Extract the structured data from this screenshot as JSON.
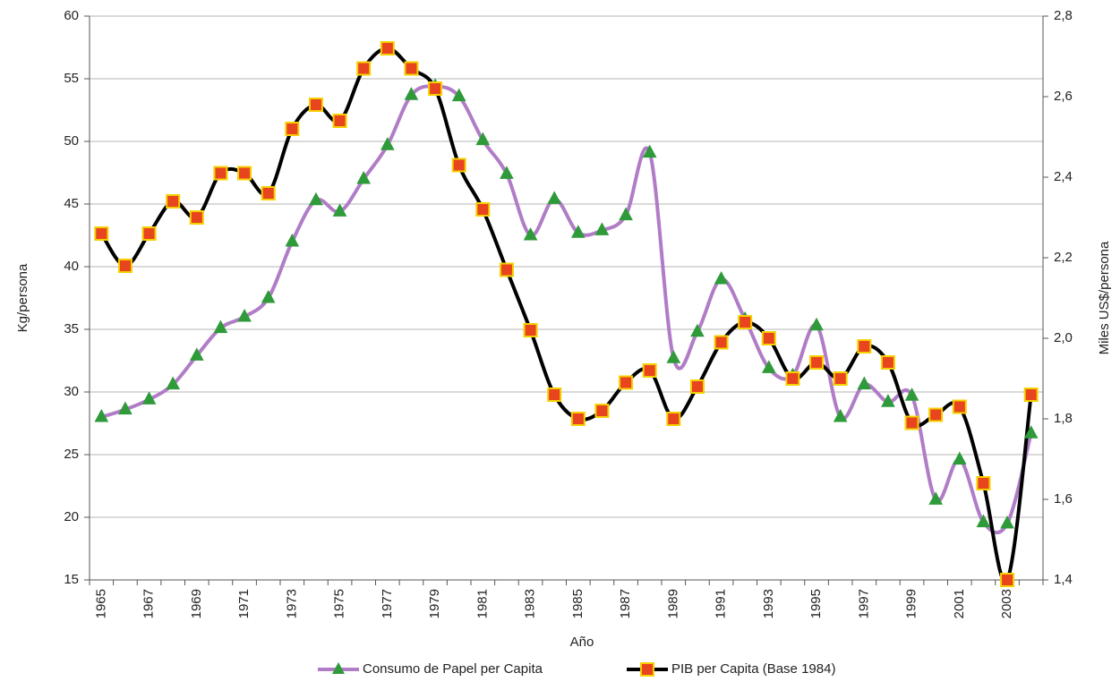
{
  "chart_data": {
    "type": "line",
    "categories": [
      "1965",
      null,
      "1967",
      null,
      "1969",
      null,
      "1971",
      null,
      "1973",
      null,
      "1975",
      null,
      "1977",
      null,
      "1979",
      null,
      "1981",
      null,
      "1983",
      null,
      "1985",
      null,
      "1987",
      null,
      "1989",
      null,
      "1991",
      null,
      "1993",
      null,
      "1995",
      null,
      "1997",
      null,
      "1999",
      null,
      "2001",
      null,
      "2003",
      null
    ],
    "x_label": "Año",
    "y_label": "Kg/persona",
    "y2_label": "Miles US$/persona",
    "ylim": [
      15,
      60
    ],
    "yticks": [
      15,
      20,
      25,
      30,
      35,
      40,
      45,
      50,
      55,
      60
    ],
    "y2lim": [
      1.4,
      2.8
    ],
    "y2ticks": [
      {
        "value": 1.4,
        "label": "1,4"
      },
      {
        "value": 1.6,
        "label": "1,6"
      },
      {
        "value": 1.8,
        "label": "1,8"
      },
      {
        "value": 2.0,
        "label": "2,0"
      },
      {
        "value": 2.2,
        "label": "2,2"
      },
      {
        "value": 2.4,
        "label": "2,4"
      },
      {
        "value": 2.6,
        "label": "2,6"
      },
      {
        "value": 2.8,
        "label": "2,8"
      }
    ],
    "grid": true,
    "series": [
      {
        "name": "Consumo de Papel per Capita",
        "color": "#b07cc6",
        "marker": "triangle",
        "marker_color": "#2e9a3a",
        "marker_edge": "#2e9a3a",
        "values": [
          28.0,
          28.6,
          29.4,
          30.6,
          32.9,
          35.1,
          36.0,
          37.5,
          42.0,
          45.3,
          44.4,
          47.0,
          49.7,
          53.7,
          54.4,
          53.6,
          50.1,
          47.4,
          42.5,
          45.4,
          42.7,
          42.9,
          44.1,
          49.1,
          32.7,
          34.8,
          39.0,
          35.8,
          31.9,
          31.3,
          35.3,
          28.0,
          30.6,
          29.2,
          29.7,
          21.4,
          24.6,
          19.6,
          19.5,
          26.7
        ]
      },
      {
        "name": "PIB per Capita (Base 1984)",
        "color": "#000000",
        "marker": "square",
        "marker_color": "#e8451e",
        "marker_edge": "#f5d000",
        "axis": "y2",
        "values": [
          2.26,
          2.18,
          2.26,
          2.34,
          2.3,
          2.41,
          2.41,
          2.36,
          2.52,
          2.58,
          2.54,
          2.67,
          2.72,
          2.67,
          2.62,
          2.43,
          2.32,
          2.17,
          2.02,
          1.86,
          1.8,
          1.82,
          1.89,
          1.92,
          1.8,
          1.88,
          1.99,
          2.04,
          2.0,
          1.9,
          1.94,
          1.9,
          1.98,
          1.94,
          1.79,
          1.81,
          1.83,
          1.64,
          1.4,
          1.86
        ]
      }
    ]
  }
}
